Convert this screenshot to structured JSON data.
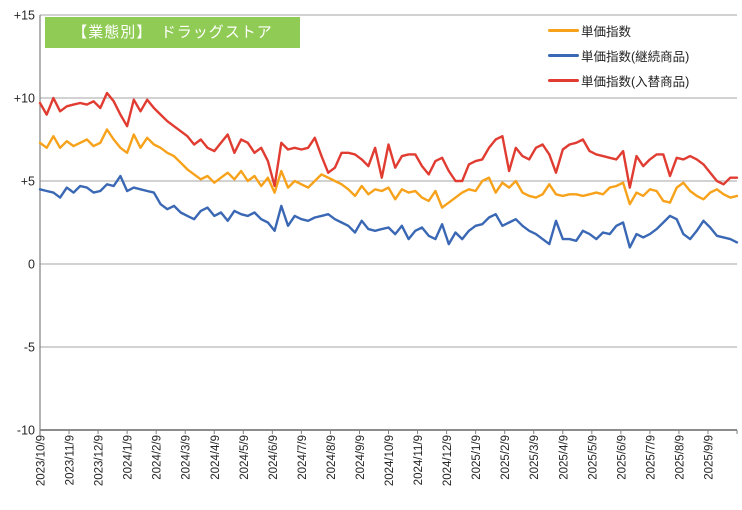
{
  "chart": {
    "background": "#FFFFFF",
    "badge_color": "#90CB55",
    "badge_text_color": "#FFFFFF",
    "grid_color": "#A6A6A6",
    "axis_color": "#666666"
  },
  "chart_data": {
    "type": "line",
    "title": "【業態別】　ドラッグストア",
    "x_start": "2023/10/9",
    "x_unit": "week",
    "ylim": [
      -10,
      15
    ],
    "grid": true,
    "legend_position": "top-right",
    "y_ticks": [
      {
        "value": 15,
        "label": "+15"
      },
      {
        "value": 10,
        "label": "+10"
      },
      {
        "value": 5,
        "label": "+5"
      },
      {
        "value": 0,
        "label": "0"
      },
      {
        "value": -5,
        "label": "-5"
      },
      {
        "value": -10,
        "label": "-10"
      }
    ],
    "x_tick_labels": [
      "2023/10/9",
      "2023/11/9",
      "2023/12/9",
      "2024/1/9",
      "2024/2/9",
      "2024/3/9",
      "2024/4/9",
      "2024/5/9",
      "2024/6/9",
      "2024/7/9",
      "2024/8/9",
      "2024/9/9",
      "2024/10/9",
      "2024/11/9",
      "2024/12/9",
      "2025/1/9",
      "2025/2/9",
      "2025/3/9",
      "2025/4/9",
      "2025/5/9",
      "2025/6/9",
      "2025/7/9",
      "2025/8/9",
      "2025/9/9"
    ],
    "series": [
      {
        "name": "単価指数",
        "color": "#F7A21A",
        "values": [
          7.3,
          7.0,
          7.7,
          7.0,
          7.4,
          7.1,
          7.3,
          7.5,
          7.1,
          7.3,
          8.1,
          7.5,
          7.0,
          6.7,
          7.8,
          7.0,
          7.6,
          7.2,
          7.0,
          6.7,
          6.5,
          6.1,
          5.7,
          5.4,
          5.1,
          5.3,
          4.9,
          5.2,
          5.5,
          5.1,
          5.6,
          5.0,
          5.3,
          4.7,
          5.2,
          4.3,
          5.6,
          4.6,
          5.0,
          4.8,
          4.6,
          5.0,
          5.4,
          5.2,
          5.0,
          4.8,
          4.5,
          4.1,
          4.7,
          4.2,
          4.5,
          4.4,
          4.6,
          3.9,
          4.5,
          4.3,
          4.4,
          4.0,
          3.8,
          4.4,
          3.4,
          3.7,
          4.0,
          4.3,
          4.5,
          4.4,
          5.0,
          5.2,
          4.3,
          4.9,
          4.6,
          5.0,
          4.3,
          4.1,
          4.0,
          4.2,
          4.8,
          4.2,
          4.1,
          4.2,
          4.2,
          4.1,
          4.2,
          4.3,
          4.2,
          4.6,
          4.7,
          4.9,
          3.6,
          4.3,
          4.1,
          4.5,
          4.4,
          3.8,
          3.7,
          4.6,
          4.9,
          4.4,
          4.1,
          3.9,
          4.3,
          4.5,
          4.2,
          4.0,
          4.1
        ]
      },
      {
        "name": "単価指数(継続商品)",
        "color": "#3A68B4",
        "values": [
          4.5,
          4.4,
          4.3,
          4.0,
          4.6,
          4.3,
          4.7,
          4.6,
          4.3,
          4.4,
          4.8,
          4.7,
          5.3,
          4.4,
          4.6,
          4.5,
          4.4,
          4.3,
          3.6,
          3.3,
          3.5,
          3.1,
          2.9,
          2.7,
          3.2,
          3.4,
          2.9,
          3.1,
          2.6,
          3.2,
          3.0,
          2.9,
          3.1,
          2.7,
          2.5,
          2.0,
          3.5,
          2.3,
          2.9,
          2.7,
          2.6,
          2.8,
          2.9,
          3.0,
          2.7,
          2.5,
          2.3,
          1.9,
          2.6,
          2.1,
          2.0,
          2.1,
          2.2,
          1.8,
          2.3,
          1.5,
          2.0,
          2.2,
          1.7,
          1.5,
          2.4,
          1.2,
          1.9,
          1.5,
          2.0,
          2.3,
          2.4,
          2.8,
          3.0,
          2.3,
          2.5,
          2.7,
          2.3,
          2.0,
          1.8,
          1.5,
          1.2,
          2.6,
          1.5,
          1.5,
          1.4,
          2.0,
          1.8,
          1.5,
          1.9,
          1.8,
          2.3,
          2.5,
          1.0,
          1.8,
          1.6,
          1.8,
          2.1,
          2.5,
          2.9,
          2.7,
          1.8,
          1.5,
          2.0,
          2.6,
          2.2,
          1.7,
          1.6,
          1.5,
          1.3
        ]
      },
      {
        "name": "単価指数(入替商品)",
        "color": "#E03C31",
        "values": [
          9.7,
          9.0,
          10.0,
          9.2,
          9.5,
          9.6,
          9.7,
          9.6,
          9.8,
          9.4,
          10.3,
          9.8,
          9.0,
          8.3,
          9.9,
          9.2,
          9.9,
          9.4,
          9.0,
          8.6,
          8.3,
          8.0,
          7.7,
          7.2,
          7.5,
          7.0,
          6.8,
          7.3,
          7.8,
          6.7,
          7.5,
          7.3,
          6.7,
          7.0,
          6.2,
          4.7,
          7.3,
          6.9,
          7.0,
          6.9,
          7.0,
          7.6,
          6.5,
          5.5,
          5.8,
          6.7,
          6.7,
          6.6,
          6.3,
          5.9,
          7.0,
          5.2,
          7.2,
          5.8,
          6.5,
          6.6,
          6.6,
          5.9,
          5.4,
          6.2,
          6.4,
          5.6,
          5.0,
          5.0,
          6.0,
          6.2,
          6.3,
          7.0,
          7.5,
          7.7,
          5.6,
          7.0,
          6.5,
          6.3,
          7.0,
          7.2,
          6.6,
          5.5,
          6.9,
          7.2,
          7.3,
          7.5,
          6.8,
          6.6,
          6.5,
          6.4,
          6.3,
          6.8,
          4.6,
          6.5,
          5.9,
          6.3,
          6.6,
          6.6,
          5.3,
          6.4,
          6.3,
          6.5,
          6.3,
          6.0,
          5.5,
          5.0,
          4.8,
          5.2,
          5.2
        ]
      }
    ]
  }
}
